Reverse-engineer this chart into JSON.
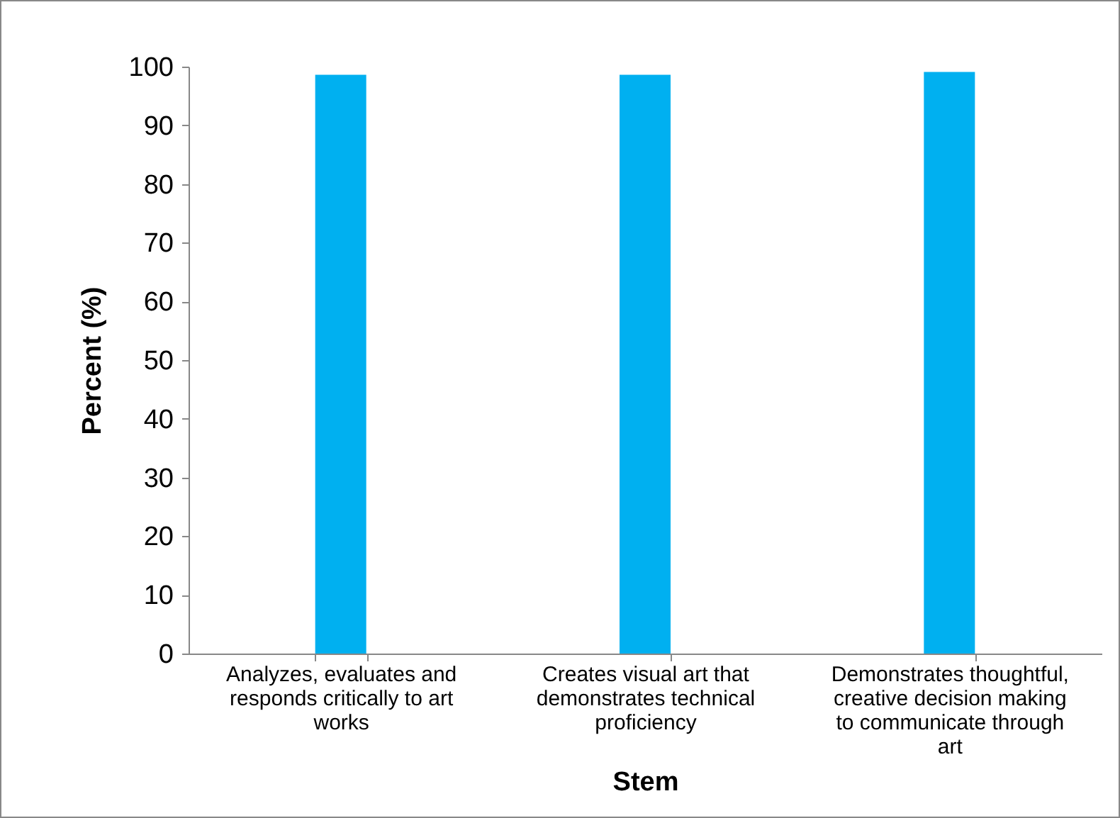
{
  "chart_data": {
    "type": "bar",
    "xlabel": "Stem",
    "ylabel": "Percent (%)",
    "categories": [
      "Analyzes, evaluates and responds critically to art works",
      "Creates visual art that demonstrates technical proficiency",
      "Demonstrates thoughtful, creative decision making to communicate through art"
    ],
    "values": [
      98.6,
      98.6,
      99.1
    ],
    "color": "#00b0f0",
    "ylim": [
      0,
      100
    ],
    "yticks": [
      0,
      10,
      20,
      30,
      40,
      50,
      60,
      70,
      80,
      90,
      100
    ],
    "grid": false
  }
}
